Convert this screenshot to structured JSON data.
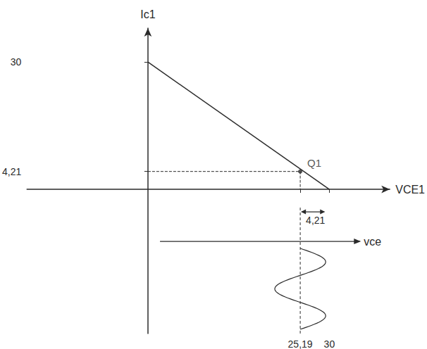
{
  "chart_data": {
    "type": "line",
    "x_label": "VCE1",
    "y_label": "Ic1",
    "x": [
      0,
      30
    ],
    "values": [
      30,
      0
    ],
    "color": "#2a2a2a",
    "xlim": [
      -20,
      40
    ],
    "ylim": [
      -34,
      38
    ],
    "xticks": [
      {
        "value": 25.19,
        "label": "25,19"
      },
      30
    ],
    "yticks": [
      {
        "value": 4.21,
        "label": "4,21"
      },
      30
    ],
    "grid": false,
    "annotations": [
      {
        "text": "Q1",
        "x": 25.19,
        "y": 4.21
      }
    ],
    "signal": {
      "label": "vce",
      "center": 25.19,
      "amplitude": 4.21,
      "amplitude_label": "4,21"
    }
  }
}
